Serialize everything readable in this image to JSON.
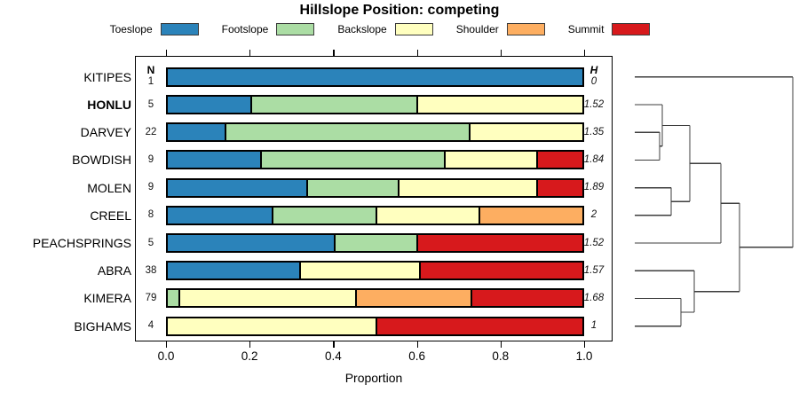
{
  "title": "Hillslope Position: competing",
  "legend": {
    "items": [
      {
        "label": "Toeslope",
        "color": "#2B83BA"
      },
      {
        "label": "Footslope",
        "color": "#ABDDA4"
      },
      {
        "label": "Backslope",
        "color": "#FFFFBF"
      },
      {
        "label": "Shoulder",
        "color": "#FDAE61"
      },
      {
        "label": "Summit",
        "color": "#D7191C"
      }
    ]
  },
  "table": {
    "n_header": "N",
    "h_header": "H"
  },
  "axis": {
    "xlabel": "Proportion",
    "ticks": [
      {
        "label": "0.0",
        "value": 0.0
      },
      {
        "label": "0.2",
        "value": 0.2
      },
      {
        "label": "0.4",
        "value": 0.4
      },
      {
        "label": "0.6",
        "value": 0.6
      },
      {
        "label": "0.8",
        "value": 0.8
      },
      {
        "label": "1.0",
        "value": 1.0
      }
    ]
  },
  "chart_data": {
    "type": "bar",
    "subtype": "stacked-horizontal-proportion",
    "title": "Hillslope Position: competing",
    "xlabel": "Proportion",
    "xlim": [
      0,
      1
    ],
    "grid": false,
    "legend_position": "top",
    "categories": [
      "Toeslope",
      "Footslope",
      "Backslope",
      "Shoulder",
      "Summit"
    ],
    "colors": {
      "Toeslope": "#2B83BA",
      "Footslope": "#ABDDA4",
      "Backslope": "#FFFFBF",
      "Shoulder": "#FDAE61",
      "Summit": "#D7191C"
    },
    "rows": [
      {
        "name": "KITIPES",
        "bold": false,
        "n": 1,
        "h": "0",
        "segments": [
          {
            "category": "Toeslope",
            "value": 1.0
          }
        ]
      },
      {
        "name": "HONLU",
        "bold": true,
        "n": 5,
        "h": "1.52",
        "segments": [
          {
            "category": "Toeslope",
            "value": 0.2
          },
          {
            "category": "Footslope",
            "value": 0.4
          },
          {
            "category": "Backslope",
            "value": 0.4
          }
        ]
      },
      {
        "name": "DARVEY",
        "bold": false,
        "n": 22,
        "h": "1.35",
        "segments": [
          {
            "category": "Toeslope",
            "value": 0.136
          },
          {
            "category": "Footslope",
            "value": 0.591
          },
          {
            "category": "Backslope",
            "value": 0.273
          }
        ]
      },
      {
        "name": "BOWDISH",
        "bold": false,
        "n": 9,
        "h": "1.84",
        "segments": [
          {
            "category": "Toeslope",
            "value": 0.222
          },
          {
            "category": "Footslope",
            "value": 0.444
          },
          {
            "category": "Backslope",
            "value": 0.222
          },
          {
            "category": "Summit",
            "value": 0.112
          }
        ]
      },
      {
        "name": "MOLEN",
        "bold": false,
        "n": 9,
        "h": "1.89",
        "segments": [
          {
            "category": "Toeslope",
            "value": 0.333
          },
          {
            "category": "Footslope",
            "value": 0.222
          },
          {
            "category": "Backslope",
            "value": 0.334
          },
          {
            "category": "Summit",
            "value": 0.111
          }
        ]
      },
      {
        "name": "CREEL",
        "bold": false,
        "n": 8,
        "h": "2",
        "segments": [
          {
            "category": "Toeslope",
            "value": 0.25
          },
          {
            "category": "Footslope",
            "value": 0.25
          },
          {
            "category": "Backslope",
            "value": 0.25
          },
          {
            "category": "Shoulder",
            "value": 0.25
          }
        ]
      },
      {
        "name": "PEACHSPRINGS",
        "bold": false,
        "n": 5,
        "h": "1.52",
        "segments": [
          {
            "category": "Toeslope",
            "value": 0.4
          },
          {
            "category": "Footslope",
            "value": 0.2
          },
          {
            "category": "Summit",
            "value": 0.4
          }
        ]
      },
      {
        "name": "ABRA",
        "bold": false,
        "n": 38,
        "h": "1.57",
        "segments": [
          {
            "category": "Toeslope",
            "value": 0.316
          },
          {
            "category": "Backslope",
            "value": 0.289
          },
          {
            "category": "Summit",
            "value": 0.395
          }
        ]
      },
      {
        "name": "KIMERA",
        "bold": false,
        "n": 79,
        "h": "1.68",
        "segments": [
          {
            "category": "Footslope",
            "value": 0.025
          },
          {
            "category": "Backslope",
            "value": 0.427
          },
          {
            "category": "Shoulder",
            "value": 0.278
          },
          {
            "category": "Summit",
            "value": 0.27
          }
        ]
      },
      {
        "name": "BIGHAMS",
        "bold": false,
        "n": 4,
        "h": "1",
        "segments": [
          {
            "category": "Backslope",
            "value": 0.5
          },
          {
            "category": "Summit",
            "value": 0.5
          }
        ]
      }
    ],
    "dendrogram": {
      "orientation": "right",
      "tree": {
        "x": 893,
        "children": [
          {
            "leaf": "KITIPES"
          },
          {
            "x": 833,
            "children": [
              {
                "x": 812,
                "children": [
                  {
                    "x": 777,
                    "children": [
                      {
                        "x": 746,
                        "children": [
                          {
                            "leaf": "HONLU"
                          },
                          {
                            "x": 743,
                            "children": [
                              {
                                "leaf": "DARVEY"
                              },
                              {
                                "leaf": "BOWDISH"
                              }
                            ]
                          }
                        ]
                      },
                      {
                        "x": 756,
                        "children": [
                          {
                            "leaf": "MOLEN"
                          },
                          {
                            "leaf": "CREEL"
                          }
                        ]
                      }
                    ]
                  },
                  {
                    "leaf": "PEACHSPRINGS"
                  }
                ]
              },
              {
                "x": 782,
                "children": [
                  {
                    "leaf": "ABRA"
                  },
                  {
                    "x": 767,
                    "children": [
                      {
                        "leaf": "KIMERA"
                      },
                      {
                        "leaf": "BIGHAMS"
                      }
                    ]
                  }
                ]
              }
            ]
          }
        ]
      }
    }
  }
}
